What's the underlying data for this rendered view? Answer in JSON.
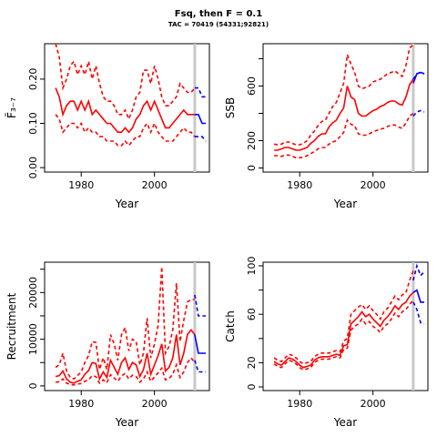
{
  "title": "Fsq, then F = 0.1",
  "subtitle": "TAC = 70419 (54331;92821)",
  "colors": {
    "historic": "#ff0000",
    "projection": "#0000ff",
    "marker": "#c8c8c8"
  },
  "chart_data": [
    {
      "type": "line",
      "id": "fbar",
      "ylabel": "F̄₃₋₇",
      "xlabel": "Year",
      "xlim": [
        1970,
        2015
      ],
      "ylim": [
        -0.01,
        0.28
      ],
      "xticks": [
        1980,
        2000
      ],
      "yticks": [
        0.0,
        0.1,
        0.2
      ],
      "ytick_labels": [
        "0.00",
        "0.10",
        "0.20"
      ],
      "marker_year": 2011,
      "historic": {
        "x": [
          1973,
          1974,
          1975,
          1976,
          1977,
          1978,
          1979,
          1980,
          1981,
          1982,
          1983,
          1984,
          1985,
          1986,
          1987,
          1988,
          1989,
          1990,
          1991,
          1992,
          1993,
          1994,
          1995,
          1996,
          1997,
          1998,
          1999,
          2000,
          2001,
          2002,
          2003,
          2004,
          2005,
          2006,
          2007,
          2008,
          2009,
          2010,
          2011
        ],
        "median": [
          0.18,
          0.16,
          0.12,
          0.14,
          0.15,
          0.15,
          0.13,
          0.15,
          0.13,
          0.15,
          0.12,
          0.13,
          0.12,
          0.11,
          0.1,
          0.1,
          0.09,
          0.08,
          0.08,
          0.09,
          0.08,
          0.09,
          0.11,
          0.12,
          0.14,
          0.15,
          0.13,
          0.15,
          0.13,
          0.11,
          0.09,
          0.09,
          0.1,
          0.11,
          0.12,
          0.13,
          0.12,
          0.12,
          0.12
        ],
        "upper": [
          0.28,
          0.25,
          0.18,
          0.2,
          0.23,
          0.24,
          0.21,
          0.23,
          0.21,
          0.24,
          0.2,
          0.23,
          0.19,
          0.16,
          0.15,
          0.15,
          0.14,
          0.12,
          0.12,
          0.13,
          0.11,
          0.13,
          0.16,
          0.17,
          0.22,
          0.22,
          0.19,
          0.23,
          0.2,
          0.16,
          0.14,
          0.14,
          0.15,
          0.16,
          0.19,
          0.18,
          0.17,
          0.17,
          0.18
        ],
        "lower": [
          0.12,
          0.11,
          0.08,
          0.09,
          0.1,
          0.1,
          0.09,
          0.1,
          0.08,
          0.09,
          0.08,
          0.08,
          0.07,
          0.07,
          0.06,
          0.06,
          0.06,
          0.05,
          0.05,
          0.06,
          0.05,
          0.06,
          0.07,
          0.07,
          0.09,
          0.1,
          0.08,
          0.1,
          0.08,
          0.07,
          0.06,
          0.06,
          0.06,
          0.07,
          0.08,
          0.09,
          0.08,
          0.08,
          0.07
        ]
      },
      "projection": {
        "x": [
          2011,
          2012,
          2013,
          2014
        ],
        "median": [
          0.12,
          0.12,
          0.1,
          0.1
        ],
        "upper": [
          0.18,
          0.18,
          0.16,
          0.16
        ],
        "lower": [
          0.07,
          0.07,
          0.07,
          0.06
        ]
      }
    },
    {
      "type": "line",
      "id": "ssb",
      "ylabel": "SSB",
      "xlabel": "Year",
      "xlim": [
        1970,
        2015
      ],
      "ylim": [
        -30,
        910
      ],
      "xticks": [
        1980,
        2000
      ],
      "yticks": [
        0,
        200,
        400,
        600,
        800
      ],
      "ytick_labels": [
        "0",
        "200",
        "",
        "600",
        ""
      ],
      "marker_year": 2011,
      "historic": {
        "x": [
          1973,
          1974,
          1975,
          1976,
          1977,
          1978,
          1979,
          1980,
          1981,
          1982,
          1983,
          1984,
          1985,
          1986,
          1987,
          1988,
          1989,
          1990,
          1991,
          1992,
          1993,
          1994,
          1995,
          1996,
          1997,
          1998,
          1999,
          2000,
          2001,
          2002,
          2003,
          2004,
          2005,
          2006,
          2007,
          2008,
          2009,
          2010,
          2011
        ],
        "median": [
          130,
          130,
          140,
          150,
          150,
          140,
          130,
          130,
          140,
          150,
          180,
          200,
          230,
          250,
          250,
          300,
          330,
          350,
          400,
          440,
          600,
          520,
          500,
          400,
          380,
          380,
          400,
          420,
          430,
          450,
          460,
          480,
          490,
          490,
          470,
          460,
          520,
          610,
          650
        ],
        "upper": [
          175,
          170,
          175,
          190,
          190,
          180,
          170,
          170,
          180,
          200,
          240,
          270,
          310,
          340,
          350,
          400,
          450,
          480,
          550,
          620,
          830,
          760,
          700,
          600,
          580,
          590,
          600,
          630,
          640,
          650,
          670,
          690,
          700,
          710,
          690,
          670,
          750,
          880,
          900
        ],
        "lower": [
          90,
          90,
          85,
          95,
          95,
          85,
          75,
          75,
          80,
          90,
          105,
          120,
          140,
          150,
          150,
          175,
          190,
          200,
          230,
          260,
          350,
          320,
          310,
          250,
          240,
          240,
          250,
          265,
          275,
          285,
          290,
          305,
          315,
          315,
          300,
          290,
          330,
          380,
          400
        ]
      },
      "projection": {
        "x": [
          2011,
          2012,
          2013,
          2014
        ],
        "median": [
          620,
          690,
          700,
          690
        ],
        "upper": [
          650,
          690,
          700,
          690
        ],
        "lower": [
          380,
          410,
          420,
          410
        ]
      }
    },
    {
      "type": "line",
      "id": "recruitment",
      "ylabel": "Recruitment",
      "xlabel": "Year",
      "xlim": [
        1970,
        2015
      ],
      "ylim": [
        -1000,
        26500
      ],
      "xticks": [
        1980,
        2000
      ],
      "yticks": [
        0,
        5000,
        10000,
        15000,
        20000,
        25000
      ],
      "ytick_labels": [
        "0",
        "",
        "10000",
        "",
        "20000",
        ""
      ],
      "marker_year": 2011,
      "historic": {
        "x": [
          1973,
          1974,
          1975,
          1976,
          1977,
          1978,
          1979,
          1980,
          1981,
          1982,
          1983,
          1984,
          1985,
          1986,
          1987,
          1988,
          1989,
          1990,
          1991,
          1992,
          1993,
          1994,
          1995,
          1996,
          1997,
          1998,
          1999,
          2000,
          2001,
          2002,
          2003,
          2004,
          2005,
          2006,
          2007,
          2008,
          2009,
          2010,
          2011
        ],
        "median": [
          2000,
          2200,
          3200,
          1500,
          800,
          600,
          1000,
          1300,
          2500,
          3300,
          5000,
          4800,
          1500,
          3000,
          1800,
          5500,
          4000,
          2500,
          5000,
          6000,
          3500,
          5000,
          4500,
          2000,
          3500,
          7000,
          2500,
          4500,
          6500,
          9000,
          3200,
          4000,
          6000,
          11000,
          4500,
          7000,
          11000,
          12000,
          11000
        ],
        "upper": [
          4000,
          4500,
          7000,
          3200,
          1800,
          1500,
          2200,
          3000,
          5000,
          6500,
          9500,
          9300,
          3500,
          6000,
          3500,
          11000,
          9000,
          5500,
          11000,
          12500,
          7500,
          10000,
          9500,
          4500,
          7000,
          14500,
          6000,
          9000,
          13000,
          25500,
          7000,
          8500,
          12000,
          22000,
          9500,
          14000,
          18000,
          18500,
          18500
        ],
        "lower": [
          800,
          900,
          1500,
          600,
          300,
          200,
          400,
          500,
          1000,
          1300,
          2200,
          2000,
          600,
          1300,
          700,
          2400,
          1700,
          1000,
          2100,
          2700,
          1500,
          2300,
          2000,
          800,
          1500,
          3000,
          1000,
          1900,
          2800,
          3800,
          1300,
          1600,
          2500,
          4500,
          1800,
          3000,
          5000,
          6000,
          5000
        ]
      },
      "projection": {
        "x": [
          2011,
          2012,
          2013,
          2014
        ],
        "median": [
          11000,
          7000,
          7000,
          7000
        ],
        "upper": [
          19500,
          15000,
          15000,
          15000
        ],
        "lower": [
          5500,
          3000,
          3000,
          3000
        ]
      }
    },
    {
      "type": "line",
      "id": "catch",
      "ylabel": "Catch",
      "xlabel": "Year",
      "xlim": [
        1970,
        2015
      ],
      "ylim": [
        -3,
        103
      ],
      "xticks": [
        1980,
        2000
      ],
      "yticks": [
        0,
        20,
        40,
        60,
        80,
        100
      ],
      "ytick_labels": [
        "0",
        "20",
        "",
        "60",
        "",
        "100"
      ],
      "marker_year": 2011,
      "historic": {
        "x": [
          1973,
          1974,
          1975,
          1976,
          1977,
          1978,
          1979,
          1980,
          1981,
          1982,
          1983,
          1984,
          1985,
          1986,
          1987,
          1988,
          1989,
          1990,
          1991,
          1992,
          1993,
          1994,
          1995,
          1996,
          1997,
          1998,
          1999,
          2000,
          2001,
          2002,
          2003,
          2004,
          2005,
          2006,
          2007,
          2008,
          2009,
          2010,
          2011
        ],
        "median": [
          21,
          19,
          18,
          21,
          24,
          23,
          21,
          18,
          16,
          17,
          18,
          22,
          24,
          25,
          25,
          25,
          26,
          27,
          26,
          34,
          35,
          52,
          55,
          58,
          62,
          58,
          60,
          56,
          53,
          50,
          55,
          58,
          62,
          67,
          64,
          68,
          70,
          75,
          78
        ],
        "upper": [
          24,
          22,
          21,
          24,
          27,
          26,
          24,
          21,
          19,
          20,
          21,
          25,
          27,
          28,
          28,
          28,
          29,
          30,
          29,
          38,
          40,
          60,
          63,
          66,
          68,
          64,
          67,
          63,
          60,
          56,
          62,
          65,
          70,
          75,
          72,
          76,
          78,
          88,
          96
        ],
        "lower": [
          19,
          17,
          16,
          19,
          22,
          21,
          19,
          16,
          14,
          15,
          16,
          20,
          22,
          23,
          23,
          23,
          24,
          25,
          24,
          31,
          32,
          47,
          50,
          52,
          56,
          52,
          54,
          50,
          48,
          45,
          50,
          52,
          56,
          61,
          58,
          62,
          64,
          68,
          72
        ]
      },
      "projection": {
        "x": [
          2011,
          2012,
          2013,
          2014
        ],
        "median": [
          78,
          80,
          70,
          70
        ],
        "upper": [
          88,
          100,
          92,
          95
        ],
        "lower": [
          70,
          64,
          53,
          52
        ]
      }
    }
  ]
}
